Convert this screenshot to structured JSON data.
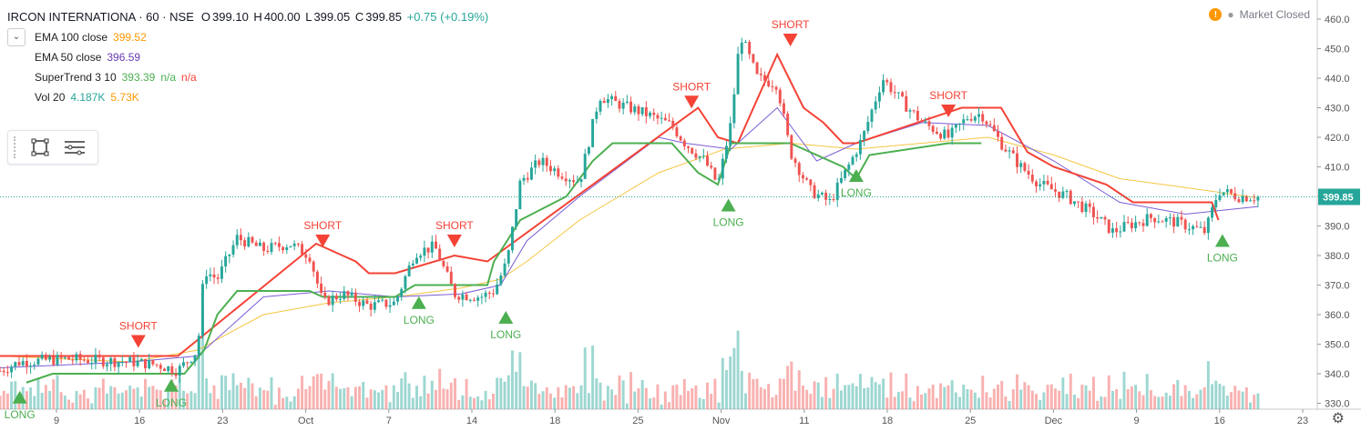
{
  "header": {
    "symbol": "IRCON INTERNATIONA · 60 · NSE",
    "open_label": "O",
    "open": "399.10",
    "high_label": "H",
    "high": "400.00",
    "low_label": "L",
    "low": "399.05",
    "close_label": "C",
    "close": "399.85",
    "change": "+0.75 (+0.19%)"
  },
  "indicators": [
    {
      "name": "EMA 100 close",
      "values": [
        "399.52"
      ],
      "colors": [
        "#ff9800"
      ]
    },
    {
      "name": "EMA 50 close",
      "values": [
        "396.59"
      ],
      "colors": [
        "#673ab7"
      ]
    },
    {
      "name": "SuperTrend 3 10",
      "values": [
        "393.39",
        "n/a",
        "n/a"
      ],
      "colors": [
        "#4caf50",
        "#4caf50",
        "#f44336"
      ]
    },
    {
      "name": "Vol 20",
      "values": [
        "4.187K",
        "5.73K"
      ],
      "colors": [
        "#26a69a",
        "#ff9800"
      ]
    }
  ],
  "market_status": {
    "icon": "warning-icon",
    "text": "Market Closed"
  },
  "colors": {
    "up": "#26a69a",
    "down": "#ef5350",
    "ema100": "#f5c542",
    "ema50": "#7b5cd6",
    "st_up": "#4caf50",
    "st_down": "#f44336",
    "price_line": "#26a69a"
  },
  "chart_data": {
    "type": "candlestick",
    "ylim": [
      328,
      464
    ],
    "y_ticks": [
      330,
      340,
      350,
      360,
      370,
      380,
      390,
      400,
      410,
      420,
      430,
      440,
      450,
      460
    ],
    "last_price": "399.85",
    "x_ticks": [
      "9",
      "16",
      "23",
      "Oct",
      "7",
      "14",
      "18",
      "25",
      "Nov",
      "11",
      "18",
      "25",
      "Dec",
      "9",
      "16",
      "23"
    ],
    "price_path": [
      [
        0,
        341
      ],
      [
        0.015,
        344
      ],
      [
        0.05,
        345
      ],
      [
        0.1,
        344
      ],
      [
        0.12,
        343
      ],
      [
        0.135,
        341
      ],
      [
        0.15,
        348
      ],
      [
        0.155,
        375
      ],
      [
        0.165,
        372
      ],
      [
        0.18,
        386
      ],
      [
        0.2,
        382
      ],
      [
        0.22,
        384
      ],
      [
        0.235,
        380
      ],
      [
        0.245,
        364
      ],
      [
        0.26,
        367
      ],
      [
        0.28,
        363
      ],
      [
        0.3,
        364
      ],
      [
        0.315,
        381
      ],
      [
        0.33,
        383
      ],
      [
        0.345,
        367
      ],
      [
        0.365,
        366
      ],
      [
        0.375,
        368
      ],
      [
        0.385,
        378
      ],
      [
        0.395,
        405
      ],
      [
        0.41,
        412
      ],
      [
        0.425,
        408
      ],
      [
        0.44,
        405
      ],
      [
        0.455,
        434
      ],
      [
        0.465,
        432
      ],
      [
        0.49,
        428
      ],
      [
        0.51,
        424
      ],
      [
        0.52,
        418
      ],
      [
        0.535,
        412
      ],
      [
        0.545,
        404
      ],
      [
        0.555,
        425
      ],
      [
        0.562,
        455
      ],
      [
        0.575,
        440
      ],
      [
        0.59,
        438
      ],
      [
        0.6,
        415
      ],
      [
        0.615,
        402
      ],
      [
        0.63,
        398
      ],
      [
        0.645,
        411
      ],
      [
        0.655,
        420
      ],
      [
        0.67,
        440
      ],
      [
        0.685,
        432
      ],
      [
        0.7,
        425
      ],
      [
        0.72,
        420
      ],
      [
        0.735,
        427
      ],
      [
        0.745,
        428
      ],
      [
        0.76,
        418
      ],
      [
        0.775,
        410
      ],
      [
        0.79,
        404
      ],
      [
        0.81,
        400
      ],
      [
        0.83,
        394
      ],
      [
        0.845,
        388
      ],
      [
        0.855,
        390
      ],
      [
        0.875,
        393
      ],
      [
        0.895,
        391
      ],
      [
        0.915,
        388
      ],
      [
        0.925,
        402
      ],
      [
        0.94,
        400
      ],
      [
        0.955,
        399.85
      ]
    ],
    "series": [
      {
        "name": "EMA 100 close",
        "values_path": [
          [
            0,
            346
          ],
          [
            0.1,
            344
          ],
          [
            0.15,
            348
          ],
          [
            0.2,
            360
          ],
          [
            0.25,
            364
          ],
          [
            0.3,
            366
          ],
          [
            0.35,
            369
          ],
          [
            0.38,
            372
          ],
          [
            0.4,
            378
          ],
          [
            0.44,
            392
          ],
          [
            0.5,
            408
          ],
          [
            0.55,
            416
          ],
          [
            0.6,
            418
          ],
          [
            0.65,
            416
          ],
          [
            0.7,
            418
          ],
          [
            0.75,
            420
          ],
          [
            0.8,
            414
          ],
          [
            0.85,
            406
          ],
          [
            0.9,
            403
          ],
          [
            0.955,
            399.52
          ]
        ]
      },
      {
        "name": "EMA 50 close",
        "values_path": [
          [
            0,
            342
          ],
          [
            0.1,
            344
          ],
          [
            0.15,
            346
          ],
          [
            0.2,
            366
          ],
          [
            0.25,
            368
          ],
          [
            0.3,
            366
          ],
          [
            0.35,
            367
          ],
          [
            0.38,
            370
          ],
          [
            0.4,
            385
          ],
          [
            0.44,
            400
          ],
          [
            0.5,
            420
          ],
          [
            0.52,
            418
          ],
          [
            0.555,
            416
          ],
          [
            0.59,
            430
          ],
          [
            0.62,
            412
          ],
          [
            0.65,
            418
          ],
          [
            0.7,
            425
          ],
          [
            0.75,
            424
          ],
          [
            0.8,
            412
          ],
          [
            0.85,
            398
          ],
          [
            0.9,
            394
          ],
          [
            0.955,
            396.59
          ]
        ]
      },
      {
        "name": "SuperTrend 3 10",
        "up_path": [
          [
            0.02,
            337
          ],
          [
            0.04,
            340
          ],
          [
            0.14,
            340
          ],
          [
            0.155,
            348
          ],
          [
            0.165,
            360
          ],
          [
            0.18,
            368
          ],
          [
            0.235,
            368
          ],
          [
            0.245,
            366
          ],
          [
            0.3,
            366
          ],
          [
            0.315,
            370
          ],
          [
            0.37,
            370
          ],
          [
            0.375,
            378
          ],
          [
            0.395,
            392
          ],
          [
            0.43,
            400
          ],
          [
            0.45,
            412
          ],
          [
            0.465,
            418
          ],
          [
            0.51,
            418
          ],
          [
            0.53,
            408
          ],
          [
            0.545,
            404
          ],
          [
            0.555,
            418
          ],
          [
            0.6,
            418
          ],
          [
            0.64,
            410
          ],
          [
            0.65,
            406
          ],
          [
            0.66,
            414
          ],
          [
            0.72,
            418
          ],
          [
            0.745,
            418
          ]
        ],
        "down_path": [
          [
            0,
            346
          ],
          [
            0.1,
            346
          ],
          [
            0.135,
            346
          ],
          [
            0.24,
            384
          ],
          [
            0.27,
            378
          ],
          [
            0.28,
            374
          ],
          [
            0.3,
            374
          ],
          [
            0.345,
            380
          ],
          [
            0.37,
            378
          ],
          [
            0.53,
            430
          ],
          [
            0.545,
            420
          ],
          [
            0.56,
            418
          ],
          [
            0.59,
            448
          ],
          [
            0.61,
            430
          ],
          [
            0.625,
            425
          ],
          [
            0.64,
            418
          ],
          [
            0.65,
            418
          ],
          [
            0.73,
            430
          ],
          [
            0.76,
            430
          ],
          [
            0.78,
            415
          ],
          [
            0.8,
            410
          ],
          [
            0.84,
            404
          ],
          [
            0.86,
            398
          ],
          [
            0.92,
            398
          ],
          [
            0.925,
            392
          ]
        ],
        "last_up": "393.39"
      }
    ],
    "volume": {
      "up": "#26a69a",
      "down": "#ef5350"
    },
    "annotations": [
      {
        "text": "SHORT",
        "type": "short",
        "x": 0.105,
        "price": 350
      },
      {
        "text": "LONG",
        "type": "long",
        "x": 0.015,
        "price": 333
      },
      {
        "text": "LONG",
        "type": "long",
        "x": 0.13,
        "price": 337
      },
      {
        "text": "SHORT",
        "type": "short",
        "x": 0.245,
        "price": 384
      },
      {
        "text": "LONG",
        "type": "long",
        "x": 0.318,
        "price": 365
      },
      {
        "text": "SHORT",
        "type": "short",
        "x": 0.345,
        "price": 384
      },
      {
        "text": "LONG",
        "type": "long",
        "x": 0.384,
        "price": 360
      },
      {
        "text": "SHORT",
        "type": "short",
        "x": 0.525,
        "price": 431
      },
      {
        "text": "LONG",
        "type": "long",
        "x": 0.553,
        "price": 398
      },
      {
        "text": "SHORT",
        "type": "short",
        "x": 0.6,
        "price": 452
      },
      {
        "text": "LONG",
        "type": "long",
        "x": 0.65,
        "price": 408
      },
      {
        "text": "SHORT",
        "type": "short",
        "x": 0.72,
        "price": 428
      },
      {
        "text": "LONG",
        "type": "long",
        "x": 0.928,
        "price": 386
      }
    ]
  }
}
